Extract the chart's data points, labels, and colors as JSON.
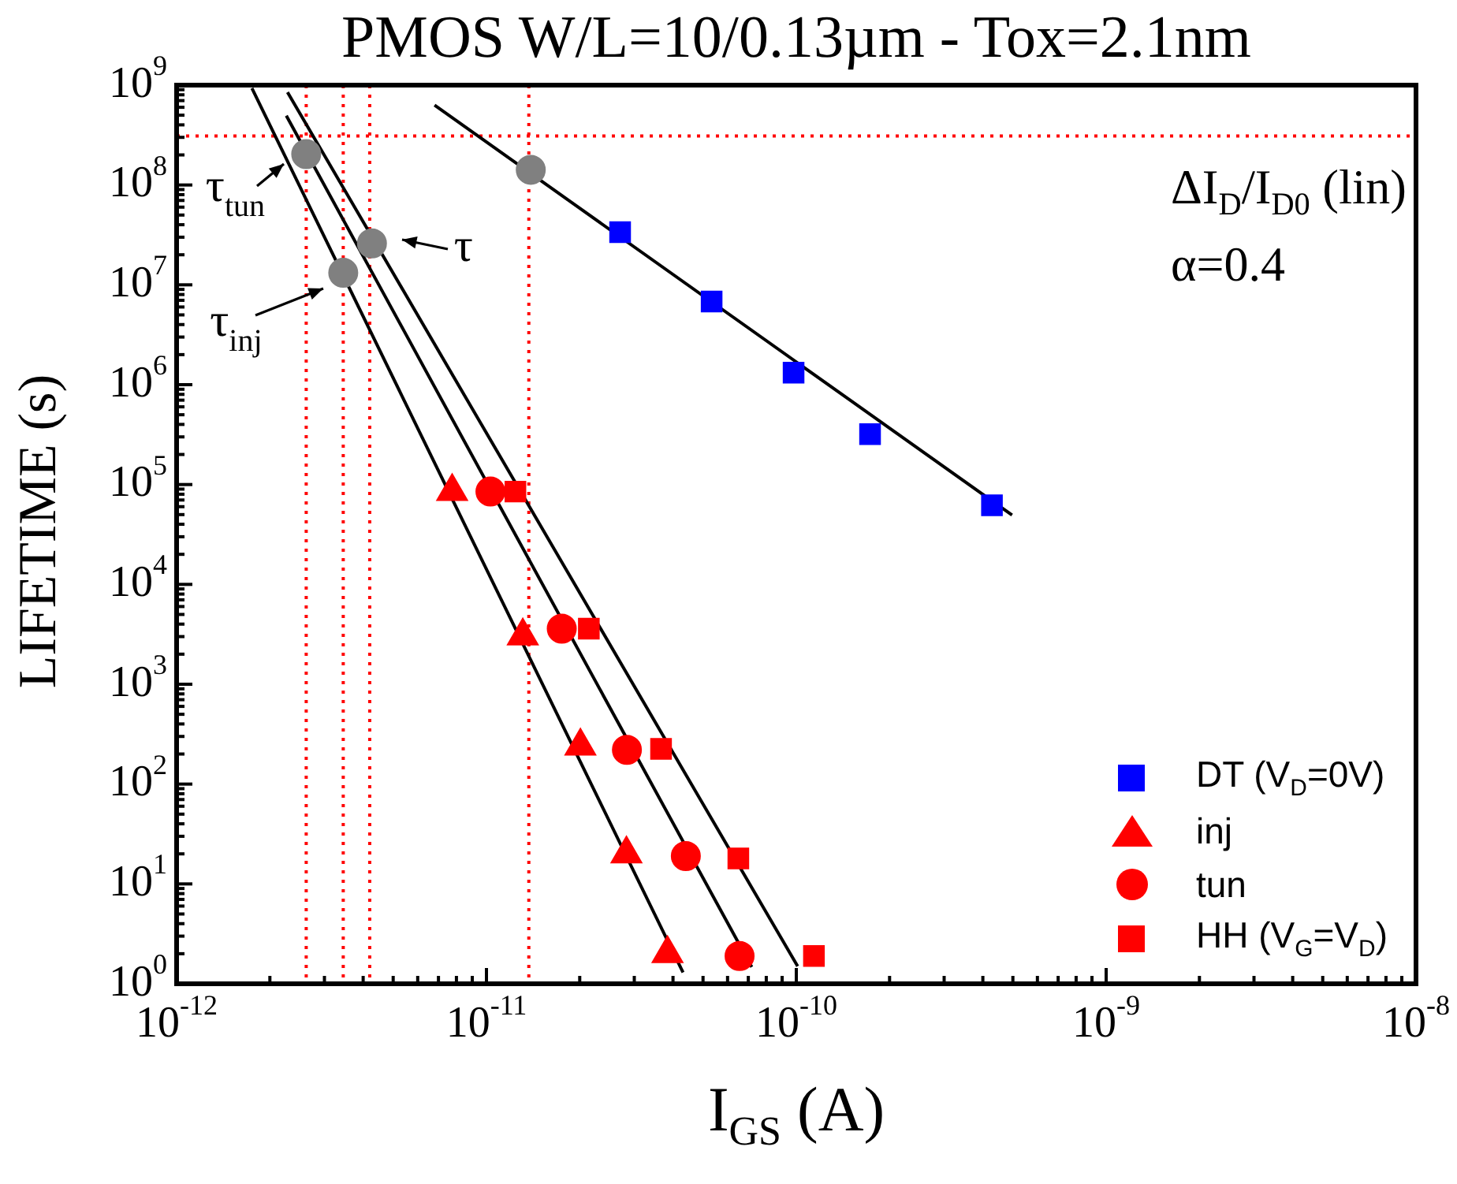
{
  "chart_data": {
    "type": "scatter",
    "title": "PMOS W/L=10/0.13µm - Tox=2.1nm",
    "xlabel": "I$_{GS}$ (A)",
    "ylabel": "LIFETIME (s)",
    "log": "xy",
    "grid": false,
    "legend": "bottom right",
    "xlim": [
      1e-12,
      1e-08
    ],
    "xticks": [
      {
        "value": 1e-12,
        "label": "10$^{-12}$"
      },
      {
        "value": 1e-11,
        "label": "10$^{-11}$"
      },
      {
        "value": 1e-10,
        "label": "10$^{-10}$"
      },
      {
        "value": 1e-09,
        "label": "10$^{-9}$"
      },
      {
        "value": 1e-08,
        "label": "10$^{-8}$"
      }
    ],
    "ylim": [
      1,
      1000000000.0
    ],
    "yticks": [
      {
        "value": 1,
        "label": "10$^{0}$"
      },
      {
        "value": 10,
        "label": "10$^{1}$"
      },
      {
        "value": 100,
        "label": "10$^{2}$"
      },
      {
        "value": 1000,
        "label": "10$^{3}$"
      },
      {
        "value": 10000,
        "label": "10$^{4}$"
      },
      {
        "value": 100000,
        "label": "10$^{5}$"
      },
      {
        "value": 1000000,
        "label": "10$^{6}$"
      },
      {
        "value": 10000000,
        "label": "10$^{7}$"
      },
      {
        "value": 100000000,
        "label": "10$^{8}$"
      },
      {
        "value": 1000000000,
        "label": "10$^{9}$"
      }
    ],
    "series": [
      {
        "name": "DT (V$_{D}$=0V)",
        "type": "scatter",
        "marker": "square",
        "color": "#0000ff",
        "x": [
          2.7e-11,
          5.33e-11,
          9.8e-11,
          1.73e-10,
          4.28e-10
        ],
        "values": [
          33700000.0,
          6800000.0,
          1320000.0,
          320000.0,
          62000.0
        ]
      },
      {
        "name": "inj",
        "type": "scatter",
        "marker": "triangle",
        "color": "#ff0000",
        "x": [
          7.75e-12,
          1.31e-11,
          2.01e-11,
          2.83e-11,
          3.84e-11
        ],
        "values": [
          85000,
          3050,
          240,
          20,
          2
        ]
      },
      {
        "name": "tun",
        "type": "scatter",
        "marker": "circle",
        "color": "#ff0000",
        "x": [
          1.03e-11,
          1.75e-11,
          2.84e-11,
          4.4e-11,
          6.56e-11
        ],
        "values": [
          85000,
          3600,
          220,
          19,
          1.9
        ]
      },
      {
        "name": "HH (V$_{G}$=V$_{D}$)",
        "type": "scatter",
        "marker": "square",
        "color": "#ff0000",
        "x": [
          1.24e-11,
          2.14e-11,
          3.66e-11,
          6.5e-11,
          1.14e-10
        ],
        "values": [
          85000,
          3600,
          225,
          18,
          1.9
        ]
      },
      {
        "type": "scatter",
        "marker": "circle",
        "color": "#808080",
        "x": [
          2.62e-12,
          4.27e-12,
          3.45e-12,
          1.39e-11
        ],
        "values": [
          204000000.0,
          26000000.0,
          13200000.0,
          142000000.0
        ]
      },
      {
        "type": "line",
        "marker": "none",
        "color": "#000000",
        "x": [
          6.8e-12,
          4.97e-10
        ],
        "values": [
          630000000.0,
          49400
        ]
      },
      {
        "type": "line",
        "marker": "none",
        "color": "#000000",
        "x": [
          1.75e-12,
          4.31e-11
        ],
        "values": [
          930000000.0,
          1.3
        ]
      },
      {
        "type": "line",
        "marker": "none",
        "color": "#000000",
        "x": [
          2.26e-12,
          7.18e-11
        ],
        "values": [
          495000000.0,
          1.47
        ]
      },
      {
        "type": "line",
        "marker": "none",
        "color": "#000000",
        "x": [
          2.28e-12,
          1.01e-10
        ],
        "values": [
          850000000.0,
          1.5
        ]
      }
    ],
    "ref_lines": [
      {
        "axis": "x",
        "value": 2.62e-12,
        "color": "#ff0000",
        "line_style": "dotted"
      },
      {
        "axis": "x",
        "value": 3.45e-12,
        "color": "#ff0000",
        "line_style": "dotted"
      },
      {
        "axis": "x",
        "value": 4.2e-12,
        "color": "#ff0000",
        "line_style": "dotted"
      },
      {
        "axis": "x",
        "value": 1.37e-11,
        "color": "#ff0000",
        "line_style": "dotted"
      },
      {
        "axis": "y",
        "value": 310000000.0,
        "color": "#ff0000",
        "line_style": "dotted"
      }
    ],
    "annotations": [
      {
        "text": "τ$_{tun}$",
        "x": 2.62e-12,
        "y": 204000000.0
      },
      {
        "text": "τ",
        "x": 4.27e-12,
        "y": 26000000.0
      },
      {
        "text": "τ$_{inj}$",
        "x": 3.45e-12,
        "y": 13200000.0
      },
      "ΔI$_{D}$/I$_{D0}$ (lin)",
      "α=0.4"
    ]
  }
}
